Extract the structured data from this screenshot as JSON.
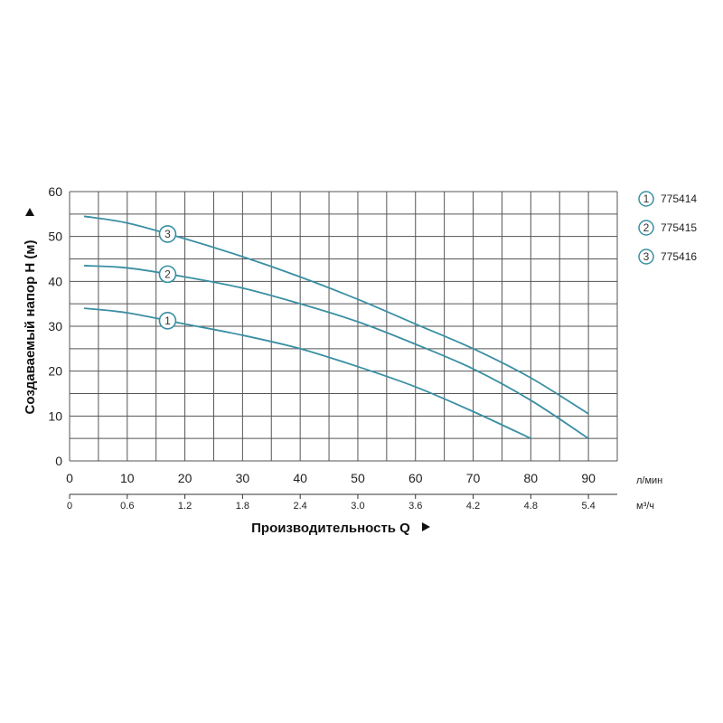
{
  "chart_data": {
    "type": "line",
    "x_ticks_primary": [
      "0",
      "10",
      "20",
      "30",
      "40",
      "50",
      "60",
      "70",
      "80",
      "90"
    ],
    "x_ticks_secondary": [
      "0",
      "0.6",
      "1.2",
      "1.8",
      "2.4",
      "3.0",
      "3.6",
      "4.2",
      "4.8",
      "5.4"
    ],
    "y_ticks": [
      "0",
      "10",
      "20",
      "30",
      "40",
      "50",
      "60"
    ],
    "xlabel": "Производительность Q",
    "ylabel": "Создаваемый напор Н (м)",
    "x_unit_primary": "л/мин",
    "x_unit_secondary": "м³/ч",
    "xlim": [
      0,
      95
    ],
    "ylim": [
      0,
      60
    ],
    "line_color": "#3a8fa3",
    "series": [
      {
        "name": "775414",
        "marker": "1",
        "marker_at": 17,
        "x": [
          2.5,
          10,
          20,
          30,
          40,
          50,
          60,
          70,
          80
        ],
        "y": [
          34,
          33,
          30.5,
          28,
          25,
          21,
          16.5,
          11,
          5
        ]
      },
      {
        "name": "775415",
        "marker": "2",
        "marker_at": 17,
        "x": [
          2.5,
          10,
          20,
          30,
          40,
          50,
          60,
          70,
          80,
          90
        ],
        "y": [
          43.5,
          43,
          41,
          38.5,
          35,
          31,
          26,
          20.5,
          13.5,
          5
        ]
      },
      {
        "name": "775416",
        "marker": "3",
        "marker_at": 17,
        "x": [
          2.5,
          10,
          20,
          30,
          40,
          50,
          60,
          70,
          80,
          90
        ],
        "y": [
          54.5,
          53,
          49.5,
          45.5,
          41,
          36,
          30.5,
          25,
          18.5,
          10.5
        ]
      }
    ]
  }
}
